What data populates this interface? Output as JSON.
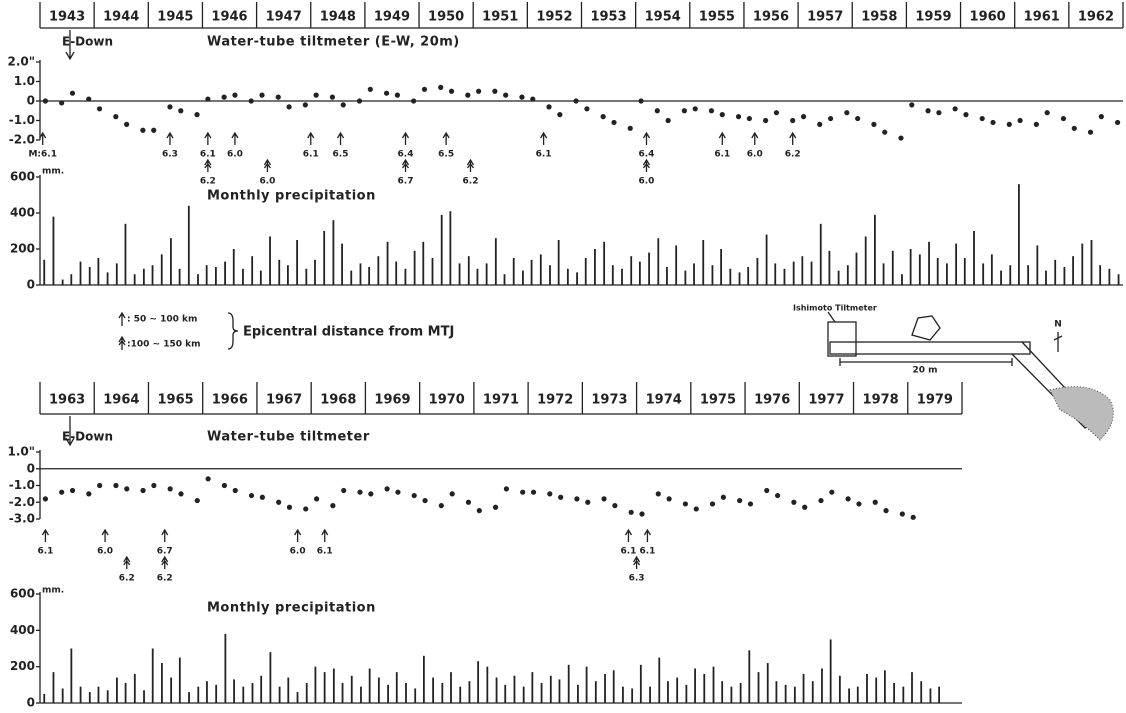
{
  "chart_data": [
    {
      "type": "scatter",
      "title": "Water-tube tiltmeter (E-W, 20m)",
      "annotation": "E-Down",
      "year_labels": [
        "1943",
        "1944",
        "1945",
        "1946",
        "1947",
        "1948",
        "1949",
        "1950",
        "1951",
        "1952",
        "1953",
        "1954",
        "1955",
        "1956",
        "1957",
        "1958",
        "1959",
        "1960",
        "1961",
        "1962"
      ],
      "xlim": [
        1943,
        1963
      ],
      "ylim": [
        -2,
        2
      ],
      "yticks": [
        {
          "value": 2,
          "label": "2.0\""
        },
        {
          "value": 1,
          "label": "1.0"
        },
        0,
        {
          "value": -1,
          "label": "-1.0"
        },
        {
          "value": -2,
          "label": "-2.0"
        }
      ],
      "color": "#222222",
      "x": [
        1943.1,
        1943.4,
        1943.6,
        1943.9,
        1944.1,
        1944.4,
        1944.6,
        1944.9,
        1945.1,
        1945.4,
        1945.6,
        1945.9,
        1946.1,
        1946.4,
        1946.6,
        1946.9,
        1947.1,
        1947.4,
        1947.6,
        1947.9,
        1948.1,
        1948.4,
        1948.6,
        1948.9,
        1949.1,
        1949.4,
        1949.6,
        1949.9,
        1950.1,
        1950.4,
        1950.6,
        1950.9,
        1951.1,
        1951.4,
        1951.6,
        1951.9,
        1952.1,
        1952.4,
        1952.6,
        1952.9,
        1953.1,
        1953.4,
        1953.6,
        1953.9,
        1954.1,
        1954.4,
        1954.6,
        1954.9,
        1955.1,
        1955.4,
        1955.6,
        1955.9,
        1956.1,
        1956.4,
        1956.6,
        1956.9,
        1957.1,
        1957.4,
        1957.6,
        1957.9,
        1958.1,
        1958.4,
        1958.6,
        1958.9,
        1959.1,
        1959.4,
        1959.6,
        1959.9,
        1960.1,
        1960.4,
        1960.6,
        1960.9,
        1961.1,
        1961.4,
        1961.6,
        1961.9,
        1962.1,
        1962.4,
        1962.6,
        1962.9
      ],
      "values": [
        0,
        -0.1,
        0.4,
        0.1,
        -0.4,
        -0.8,
        -1.2,
        -1.5,
        -1.5,
        -0.3,
        -0.5,
        -0.7,
        0.1,
        0.2,
        0.3,
        0,
        0.3,
        0.2,
        -0.3,
        -0.2,
        0.3,
        0.2,
        -0.2,
        0,
        0.6,
        0.4,
        0.3,
        0,
        0.6,
        0.7,
        0.5,
        0.3,
        0.5,
        0.5,
        0.3,
        0.2,
        0.1,
        -0.3,
        -0.7,
        0,
        -0.4,
        -0.8,
        -1.1,
        -1.4,
        0,
        -0.5,
        -1,
        -0.5,
        -0.4,
        -0.5,
        -0.7,
        -0.8,
        -0.9,
        -1,
        -0.6,
        -1,
        -0.8,
        -1.2,
        -0.9,
        -0.6,
        -0.9,
        -1.2,
        -1.6,
        -1.9,
        -0.2,
        -0.5,
        -0.6,
        -0.4,
        -0.7,
        -0.9,
        -1.1,
        -1.2,
        -1,
        -1.2,
        -0.6,
        -0.9,
        -1.4,
        -1.6,
        -0.8,
        -1.1
      ],
      "events_near": [
        {
          "x": 1943.05,
          "label": "M:6.1"
        },
        {
          "x": 1945.4,
          "label": "6.3"
        },
        {
          "x": 1946.1,
          "label": "6.1"
        },
        {
          "x": 1946.6,
          "label": "6.0"
        },
        {
          "x": 1948.0,
          "label": "6.1"
        },
        {
          "x": 1948.55,
          "label": "6.5"
        },
        {
          "x": 1949.75,
          "label": "6.4"
        },
        {
          "x": 1950.5,
          "label": "6.5"
        },
        {
          "x": 1952.3,
          "label": "6.1"
        },
        {
          "x": 1954.2,
          "label": "6.4"
        },
        {
          "x": 1955.6,
          "label": "6.1"
        },
        {
          "x": 1956.2,
          "label": "6.0"
        },
        {
          "x": 1956.9,
          "label": "6.2"
        }
      ],
      "events_far": [
        {
          "x": 1946.1,
          "label": "6.2"
        },
        {
          "x": 1947.2,
          "label": "6.0"
        },
        {
          "x": 1949.75,
          "label": "6.7"
        },
        {
          "x": 1950.95,
          "label": "6.2"
        },
        {
          "x": 1954.2,
          "label": "6.0"
        }
      ]
    },
    {
      "type": "bar",
      "title": "Monthly precipitation",
      "unit": "mm.",
      "xlim": [
        1943,
        1963
      ],
      "ylim": [
        0,
        600
      ],
      "yticks": [
        0,
        200,
        400,
        600
      ],
      "color": "#222222",
      "x": [
        1943.08,
        1943.25,
        1943.42,
        1943.58,
        1943.75,
        1943.92,
        1944.08,
        1944.25,
        1944.42,
        1944.58,
        1944.75,
        1944.92,
        1945.08,
        1945.25,
        1945.42,
        1945.58,
        1945.75,
        1945.92,
        1946.08,
        1946.25,
        1946.42,
        1946.58,
        1946.75,
        1946.92,
        1947.08,
        1947.25,
        1947.42,
        1947.58,
        1947.75,
        1947.92,
        1948.08,
        1948.25,
        1948.42,
        1948.58,
        1948.75,
        1948.92,
        1949.08,
        1949.25,
        1949.42,
        1949.58,
        1949.75,
        1949.92,
        1950.08,
        1950.25,
        1950.42,
        1950.58,
        1950.75,
        1950.92,
        1951.08,
        1951.25,
        1951.42,
        1951.58,
        1951.75,
        1951.92,
        1952.08,
        1952.25,
        1952.42,
        1952.58,
        1952.75,
        1952.92,
        1953.08,
        1953.25,
        1953.42,
        1953.58,
        1953.75,
        1953.92,
        1954.08,
        1954.25,
        1954.42,
        1954.58,
        1954.75,
        1954.92,
        1955.08,
        1955.25,
        1955.42,
        1955.58,
        1955.75,
        1955.92,
        1956.08,
        1956.25,
        1956.42,
        1956.58,
        1956.75,
        1956.92,
        1957.08,
        1957.25,
        1957.42,
        1957.58,
        1957.75,
        1957.92,
        1958.08,
        1958.25,
        1958.42,
        1958.58,
        1958.75,
        1958.92,
        1959.08,
        1959.25,
        1959.42,
        1959.58,
        1959.75,
        1959.92,
        1960.08,
        1960.25,
        1960.42,
        1960.58,
        1960.75,
        1960.92,
        1961.08,
        1961.25,
        1961.42,
        1961.58,
        1961.75,
        1961.92,
        1962.08,
        1962.25,
        1962.42,
        1962.58,
        1962.75,
        1962.92
      ],
      "values": [
        140,
        380,
        30,
        60,
        130,
        100,
        150,
        70,
        120,
        340,
        60,
        90,
        110,
        170,
        260,
        90,
        440,
        60,
        110,
        100,
        130,
        200,
        90,
        160,
        80,
        270,
        140,
        110,
        250,
        90,
        140,
        300,
        360,
        230,
        80,
        120,
        100,
        160,
        240,
        130,
        90,
        190,
        240,
        150,
        390,
        410,
        120,
        160,
        90,
        120,
        260,
        60,
        150,
        80,
        140,
        170,
        110,
        250,
        90,
        70,
        150,
        200,
        240,
        110,
        90,
        160,
        130,
        180,
        260,
        100,
        220,
        80,
        120,
        250,
        110,
        200,
        90,
        70,
        100,
        150,
        280,
        120,
        90,
        130,
        160,
        130,
        340,
        190,
        80,
        110,
        180,
        270,
        390,
        120,
        190,
        60,
        200,
        170,
        240,
        150,
        120,
        230,
        150,
        300,
        120,
        170,
        80,
        110,
        560,
        110,
        220,
        80,
        140,
        100,
        160,
        230,
        250,
        110,
        90,
        60
      ]
    },
    {
      "type": "scatter",
      "title": "Water-tube tiltmeter",
      "annotation": "E-Down",
      "year_labels": [
        "1963",
        "1964",
        "1965",
        "1966",
        "1967",
        "1968",
        "1969",
        "1970",
        "1971",
        "1972",
        "1973",
        "1974",
        "1975",
        "1976",
        "1977",
        "1978",
        "1979"
      ],
      "xlim": [
        1963,
        1980
      ],
      "ylim": [
        -3,
        1
      ],
      "yticks": [
        {
          "value": 1,
          "label": "1.0\""
        },
        0,
        {
          "value": -1,
          "label": "-1.0"
        },
        {
          "value": -2,
          "label": "-2.0"
        },
        {
          "value": -3,
          "label": "-3.0"
        }
      ],
      "color": "#222222",
      "x": [
        1963.1,
        1963.4,
        1963.6,
        1963.9,
        1964.1,
        1964.4,
        1964.6,
        1964.9,
        1965.1,
        1965.4,
        1965.6,
        1965.9,
        1966.1,
        1966.4,
        1966.6,
        1966.9,
        1967.1,
        1967.4,
        1967.6,
        1967.9,
        1968.1,
        1968.4,
        1968.6,
        1968.9,
        1969.1,
        1969.4,
        1969.6,
        1969.9,
        1970.1,
        1970.4,
        1970.6,
        1970.9,
        1971.1,
        1971.4,
        1971.6,
        1971.9,
        1972.1,
        1972.4,
        1972.6,
        1972.9,
        1973.1,
        1973.4,
        1973.6,
        1973.9,
        1974.1,
        1974.4,
        1974.6,
        1974.9,
        1975.1,
        1975.4,
        1975.6,
        1975.9,
        1976.1,
        1976.4,
        1976.6,
        1976.9,
        1977.1,
        1977.4,
        1977.6,
        1977.9,
        1978.1,
        1978.4,
        1978.6,
        1978.9,
        1979.1
      ],
      "values": [
        -1.8,
        -1.4,
        -1.3,
        -1.5,
        -1,
        -1,
        -1.2,
        -1.3,
        -1,
        -1.2,
        -1.5,
        -1.9,
        -0.6,
        -1,
        -1.3,
        -1.6,
        -1.7,
        -2,
        -2.3,
        -2.4,
        -1.8,
        -2.2,
        -1.3,
        -1.4,
        -1.5,
        -1.2,
        -1.4,
        -1.6,
        -1.9,
        -2.2,
        -1.5,
        -2,
        -2.5,
        -2.3,
        -1.2,
        -1.4,
        -1.4,
        -1.5,
        -1.7,
        -1.8,
        -2,
        -1.8,
        -2.2,
        -2.6,
        -2.7,
        -1.5,
        -1.8,
        -2.1,
        -2.4,
        -2.1,
        -1.7,
        -1.9,
        -2.1,
        -1.3,
        -1.6,
        -2,
        -2.3,
        -1.9,
        -1.4,
        -1.8,
        -2.1,
        -2,
        -2.5,
        -2.7,
        -2.9
      ],
      "events_near": [
        {
          "x": 1963.1,
          "label": "6.1"
        },
        {
          "x": 1964.2,
          "label": "6.0"
        },
        {
          "x": 1965.3,
          "label": "6.7"
        },
        {
          "x": 1967.75,
          "label": "6.0"
        },
        {
          "x": 1968.25,
          "label": "6.1"
        },
        {
          "x": 1973.85,
          "label": "6.1"
        },
        {
          "x": 1974.2,
          "label": "6.1"
        }
      ],
      "events_far": [
        {
          "x": 1964.6,
          "label": "6.2"
        },
        {
          "x": 1965.3,
          "label": "6.2"
        },
        {
          "x": 1974.0,
          "label": "6.3"
        }
      ]
    },
    {
      "type": "bar",
      "title": "Monthly precipitation",
      "unit": "mm.",
      "xlim": [
        1963,
        1980
      ],
      "ylim": [
        0,
        600
      ],
      "yticks": [
        0,
        200,
        400,
        600
      ],
      "color": "#222222",
      "x": [
        1963.08,
        1963.25,
        1963.42,
        1963.58,
        1963.75,
        1963.92,
        1964.08,
        1964.25,
        1964.42,
        1964.58,
        1964.75,
        1964.92,
        1965.08,
        1965.25,
        1965.42,
        1965.58,
        1965.75,
        1965.92,
        1966.08,
        1966.25,
        1966.42,
        1966.58,
        1966.75,
        1966.92,
        1967.08,
        1967.25,
        1967.42,
        1967.58,
        1967.75,
        1967.92,
        1968.08,
        1968.25,
        1968.42,
        1968.58,
        1968.75,
        1968.92,
        1969.08,
        1969.25,
        1969.42,
        1969.58,
        1969.75,
        1969.92,
        1970.08,
        1970.25,
        1970.42,
        1970.58,
        1970.75,
        1970.92,
        1971.08,
        1971.25,
        1971.42,
        1971.58,
        1971.75,
        1971.92,
        1972.08,
        1972.25,
        1972.42,
        1972.58,
        1972.75,
        1972.92,
        1973.08,
        1973.25,
        1973.42,
        1973.58,
        1973.75,
        1973.92,
        1974.08,
        1974.25,
        1974.42,
        1974.58,
        1974.75,
        1974.92,
        1975.08,
        1975.25,
        1975.42,
        1975.58,
        1975.75,
        1975.92,
        1976.08,
        1976.25,
        1976.42,
        1976.58,
        1976.75,
        1976.92,
        1977.08,
        1977.25,
        1977.42,
        1977.58,
        1977.75,
        1977.92,
        1978.08,
        1978.25,
        1978.42,
        1978.58,
        1978.75,
        1978.92,
        1979.08,
        1979.25,
        1979.42,
        1979.58
      ],
      "values": [
        50,
        170,
        80,
        300,
        90,
        60,
        90,
        70,
        140,
        110,
        160,
        70,
        300,
        220,
        140,
        250,
        60,
        90,
        120,
        100,
        380,
        130,
        90,
        110,
        150,
        280,
        90,
        140,
        60,
        110,
        200,
        170,
        190,
        110,
        150,
        90,
        190,
        140,
        100,
        170,
        110,
        80,
        260,
        140,
        110,
        170,
        90,
        120,
        230,
        200,
        140,
        100,
        150,
        90,
        170,
        110,
        150,
        130,
        210,
        100,
        200,
        120,
        160,
        180,
        90,
        80,
        210,
        90,
        250,
        120,
        140,
        100,
        190,
        160,
        200,
        120,
        90,
        110,
        290,
        170,
        220,
        120,
        100,
        90,
        160,
        120,
        190,
        350,
        150,
        80,
        90,
        160,
        140,
        180,
        110,
        90,
        170,
        120,
        80,
        90
      ]
    }
  ],
  "legend": {
    "near": ": 50 ~ 100 km",
    "far": ":100 ~ 150 km",
    "title": "Epicentral distance from MTJ"
  },
  "inset": {
    "instrument": "Ishimoto Tiltmeter",
    "length": "20 m",
    "north": "N"
  }
}
